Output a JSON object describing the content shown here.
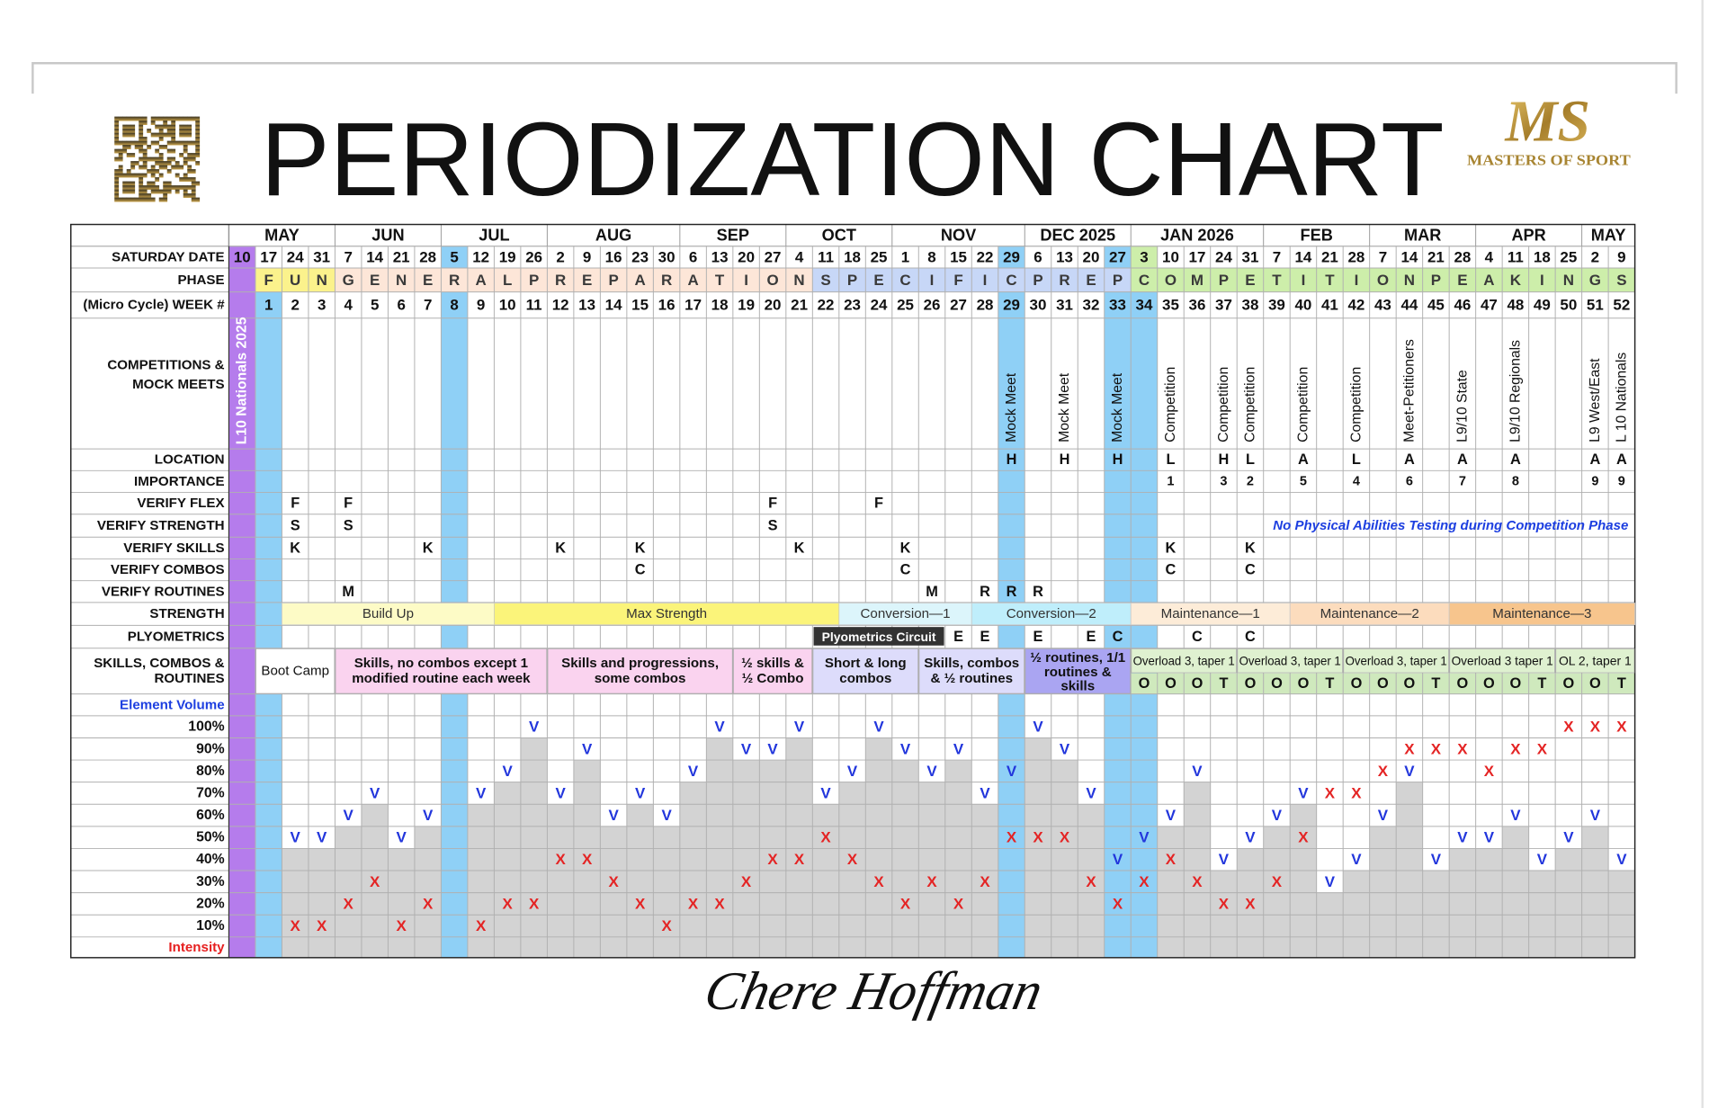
{
  "header": {
    "title": "PERIODIZATION CHART",
    "logo_mark": "MS",
    "logo": "MASTERS OF SPORT"
  },
  "table": {
    "row_labels": {
      "date": [
        "SATURDAY DATE"
      ],
      "phase": [
        "PHASE"
      ],
      "week": [
        "(Micro Cycle) WEEK #"
      ],
      "competitions": [
        "COMPETITIONS &",
        "MOCK MEETS"
      ],
      "location": [
        "LOCATION"
      ],
      "importance": [
        "IMPORTANCE"
      ],
      "flex": [
        "VERIFY FLEX"
      ],
      "strength_test": [
        "VERIFY STRENGTH"
      ],
      "skills": [
        "VERIFY SKILLS"
      ],
      "combos": [
        "VERIFY  COMBOS"
      ],
      "routines": [
        "VERIFY  ROUTINES"
      ],
      "strength": [
        "STRENGTH"
      ],
      "plyometrics": [
        "PLYOMETRICS"
      ],
      "scr": [
        "SKILLS, COMBOS &",
        "ROUTINES"
      ],
      "volume": [
        "Element Volume"
      ],
      "intensity": [
        "Intensity"
      ]
    },
    "months": [
      "MAY",
      "JUN",
      "JUL",
      "AUG",
      "SEP",
      "OCT",
      "NOV",
      "DEC 2025",
      "JAN 2026",
      "FEB",
      "MAR",
      "APR",
      "MAY"
    ],
    "dates": [
      10,
      17,
      24,
      31,
      7,
      14,
      21,
      28,
      5,
      12,
      19,
      26,
      2,
      9,
      16,
      23,
      30,
      6,
      13,
      20,
      27,
      4,
      11,
      18,
      25,
      1,
      8,
      15,
      22,
      29,
      6,
      13,
      20,
      27,
      3,
      10,
      17,
      24,
      31,
      7,
      14,
      21,
      28,
      7,
      14,
      21,
      28,
      4,
      11,
      18,
      25,
      2,
      9
    ],
    "phase": [
      "F",
      "U",
      "N",
      "G",
      "E",
      "N",
      "E",
      "R",
      "A",
      "L",
      "P",
      "R",
      "E",
      "P",
      "A",
      "R",
      "A",
      "T",
      "I",
      "O",
      "N",
      "S",
      "P",
      "E",
      "C",
      "I",
      "F",
      "I",
      "C",
      "P",
      "R",
      "E",
      "P",
      "C",
      "O",
      "M",
      "P",
      "E",
      "T",
      "I",
      "T",
      "I",
      "O",
      "N",
      "P",
      "E",
      "A",
      "K",
      "I",
      "N",
      "G",
      "S"
    ],
    "week0": "L10 Nationals 2025",
    "weeks": [
      1,
      2,
      3,
      4,
      5,
      6,
      7,
      8,
      9,
      10,
      11,
      12,
      13,
      14,
      15,
      16,
      17,
      18,
      19,
      20,
      21,
      22,
      23,
      24,
      25,
      26,
      27,
      28,
      29,
      30,
      31,
      32,
      33,
      34,
      35,
      36,
      37,
      38,
      39,
      40,
      41,
      42,
      43,
      44,
      45,
      46,
      47,
      48,
      49,
      50,
      51,
      52
    ],
    "competitions": {
      "29": "Mock Meet",
      "31": "Mock Meet",
      "33": "Mock Meet",
      "35": "Competition",
      "37": "Competition",
      "38": "Competition",
      "40": "Competition",
      "42": "Competition",
      "44": "Meet-Petitioners",
      "46": "L9/10 State",
      "48": "L9/10 Regionals",
      "51": "L9 West/East",
      "52": "L 10 Nationals"
    },
    "location": {
      "29": "H",
      "31": "H",
      "33": "H",
      "35": "L",
      "37": "H",
      "38": "L",
      "40": "A",
      "42": "L",
      "44": "A",
      "46": "A",
      "48": "A",
      "51": "A",
      "52": "A"
    },
    "importance": {
      "35": 1,
      "37": 3,
      "38": 2,
      "40": 5,
      "42": 4,
      "44": 6,
      "46": 7,
      "48": 8,
      "51": 9,
      "52": 9
    },
    "flex": {
      "2": "F",
      "4": "F",
      "20": "F",
      "24": "F"
    },
    "strength_test": {
      "2": "S",
      "4": "S",
      "20": "S"
    },
    "skills": {
      "2": "K",
      "7": "K",
      "12": "K",
      "15": "K",
      "21": "K",
      "25": "K",
      "35": "K",
      "38": "K"
    },
    "combos": {
      "15": "C",
      "25": "C",
      "35": "C",
      "38": "C"
    },
    "routines": {
      "4": "M",
      "26": "M",
      "28": "R",
      "29": "R",
      "30": "R"
    },
    "testing_note": "No Physical Abilities Testing during Competition Phase",
    "strength": [
      "Build Up",
      "Max Strength",
      "Conversion—1",
      "Conversion—2",
      "Maintenance—1",
      "Maintenance—2",
      "Maintenance—3"
    ],
    "plyometrics_block": "Plyometrics Circuit",
    "plyometrics": {
      "27": "E",
      "28": "E",
      "30": "E",
      "32": "E",
      "33": "C",
      "36": "C",
      "38": "C"
    },
    "scr": [
      [
        "Boot Camp"
      ],
      [
        "Skills, no combos except 1",
        "modified routine each week"
      ],
      [
        "Skills and progressions,",
        "some combos"
      ],
      [
        "½ skills &",
        "½ Combo"
      ],
      [
        "Short & long",
        "combos"
      ],
      [
        "Skills, combos",
        "& ½ routines"
      ],
      [
        "½ routines, 1/1",
        "routines &",
        "skills"
      ],
      [
        "Overload 3, taper 1"
      ],
      [
        "Overload 3, taper 1"
      ],
      [
        "Overload 3, taper 1"
      ],
      [
        "Overload 3 taper 1"
      ],
      [
        "OL 2, taper 1"
      ]
    ],
    "scr_ot": {
      "34": "O",
      "35": "O",
      "36": "O",
      "37": "T",
      "38": "O",
      "39": "O",
      "40": "O",
      "41": "T",
      "42": "O",
      "43": "O",
      "44": "O",
      "45": "T",
      "46": "O",
      "47": "O",
      "48": "O",
      "49": "T",
      "50": "O",
      "51": "O",
      "52": "T"
    },
    "volume_rows": [
      {
        "label": "100%",
        "cells": {
          "11": "V",
          "18": "V",
          "21": "V",
          "24": "V",
          "30": "V",
          "50": "X",
          "51": "X",
          "52": "X"
        }
      },
      {
        "label": "90%",
        "cells": {
          "13": "V",
          "19": "V",
          "20": "V",
          "25": "V",
          "27": "V",
          "31": "V",
          "44": "X",
          "45": "X",
          "46": "X",
          "48": "X",
          "49": "X"
        }
      },
      {
        "label": "80%",
        "cells": {
          "10": "V",
          "17": "V",
          "23": "V",
          "26": "V",
          "29": "V",
          "36": "V",
          "44": "V",
          "43": "X",
          "47": "X"
        }
      },
      {
        "label": "70%",
        "cells": {
          "5": "V",
          "9": "V",
          "12": "V",
          "15": "V",
          "22": "V",
          "28": "V",
          "32": "V",
          "40": "V",
          "41": "X",
          "42": "X"
        }
      },
      {
        "label": "60%",
        "cells": {
          "4": "V",
          "7": "V",
          "14": "V",
          "16": "V",
          "35": "V",
          "39": "V",
          "43": "V",
          "48": "V",
          "51": "V"
        }
      },
      {
        "label": "50%",
        "cells": {
          "2": "V",
          "3": "V",
          "6": "V",
          "34": "V",
          "38": "V",
          "46": "V",
          "47": "V",
          "50": "V",
          "22": "X",
          "29": "X",
          "30": "X",
          "31": "X",
          "40": "X"
        }
      },
      {
        "label": "40%",
        "cells": {
          "33": "V",
          "37": "V",
          "42": "V",
          "45": "V",
          "49": "V",
          "52": "V",
          "12": "X",
          "13": "X",
          "20": "X",
          "21": "X",
          "23": "X",
          "35": "X"
        }
      },
      {
        "label": "30%",
        "cells": {
          "41": "V",
          "5": "X",
          "14": "X",
          "19": "X",
          "24": "X",
          "26": "X",
          "28": "X",
          "32": "X",
          "34": "X",
          "36": "X",
          "39": "X"
        }
      },
      {
        "label": "20%",
        "cells": {
          "4": "X",
          "7": "X",
          "10": "X",
          "11": "X",
          "15": "X",
          "17": "X",
          "18": "X",
          "25": "X",
          "27": "X",
          "33": "X",
          "37": "X",
          "38": "X"
        }
      },
      {
        "label": "10%",
        "cells": {
          "2": "X",
          "3": "X",
          "6": "X",
          "9": "X",
          "16": "X"
        }
      }
    ]
  },
  "signature": "Chere Hoffman"
}
